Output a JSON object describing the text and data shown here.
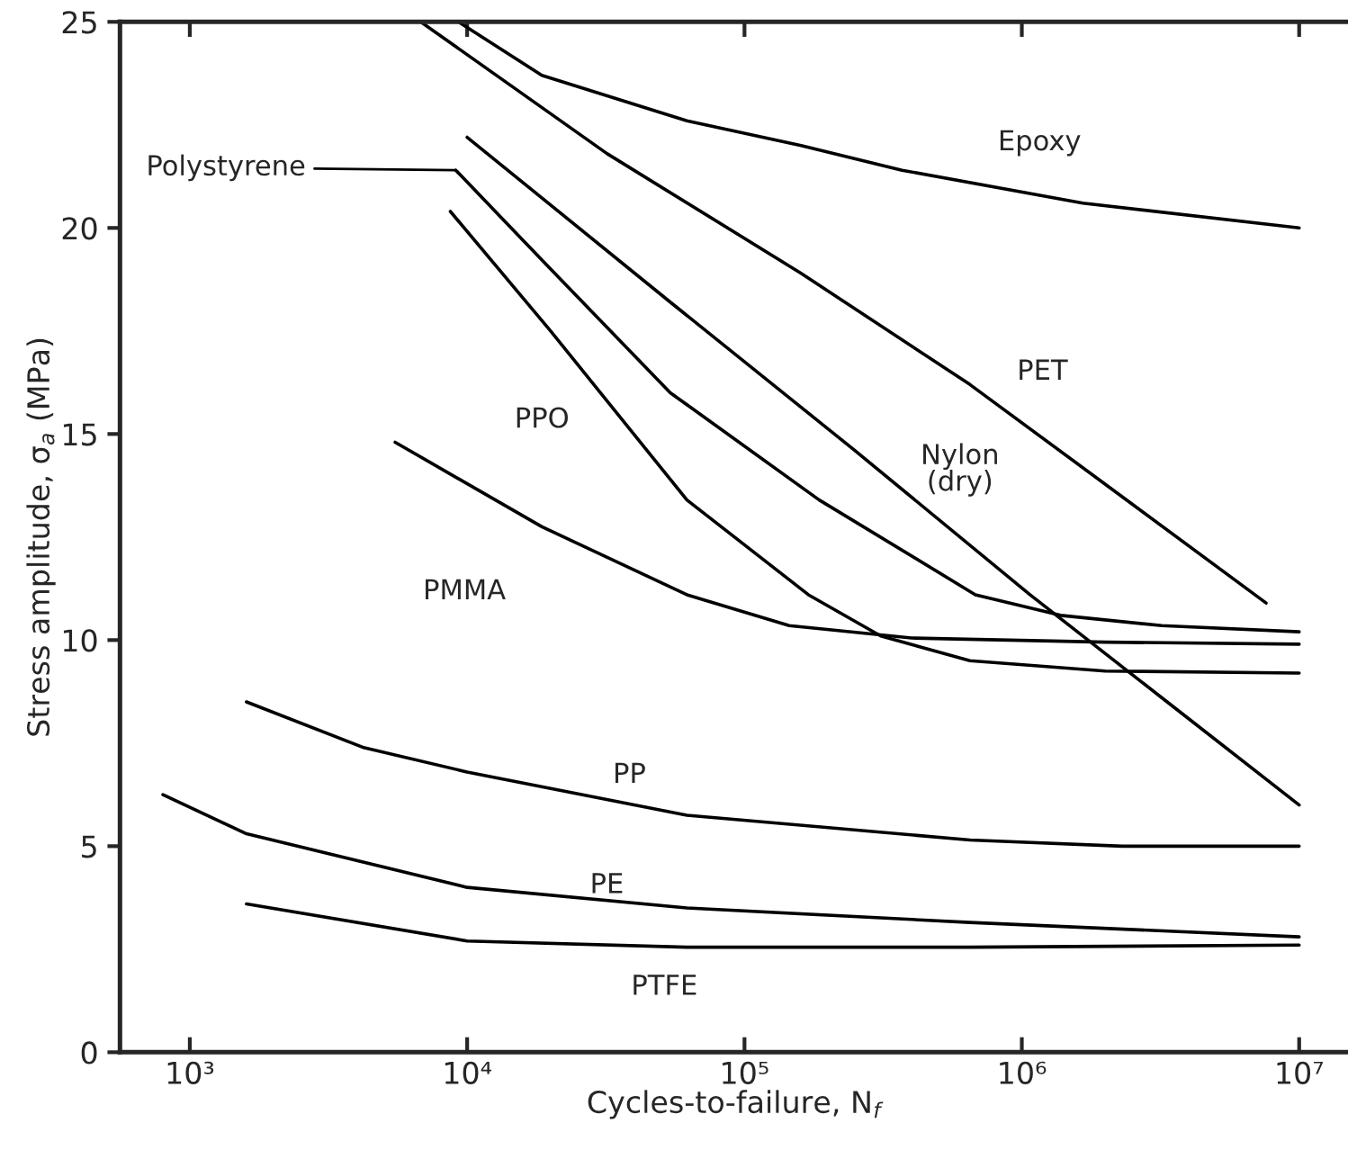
{
  "chart_data": {
    "type": "line",
    "xlabel": "Cycles-to-failure, N$_{f}$",
    "ylabel": "Stress amplitude, σ$_{a}$ (MPa)",
    "log": "x",
    "xlim": [
      560,
      15000000
    ],
    "xticks": [
      {
        "value": 1000,
        "label": "10³"
      },
      {
        "value": 10000,
        "label": "10⁴"
      },
      {
        "value": 100000,
        "label": "10⁵"
      },
      {
        "value": 1000000,
        "label": "10⁶"
      },
      {
        "value": 10000000,
        "label": "10⁷"
      }
    ],
    "ylim": [
      0,
      25
    ],
    "yticks": [
      0,
      5,
      10,
      15,
      20,
      25
    ],
    "grid": false,
    "legend": false,
    "marker": "none",
    "line_style": "solid",
    "series": [
      {
        "name": "Epoxy",
        "color": "#000000",
        "x": [
          9300,
          18600,
          62000,
          160000,
          370000,
          1660000,
          10000000
        ],
        "values": [
          25,
          23.7,
          22.6,
          22.0,
          21.4,
          20.6,
          20.0
        ]
      },
      {
        "name": "PET",
        "color": "#000000",
        "x": [
          6800,
          32000,
          160000,
          650000,
          2500000,
          7600000
        ],
        "values": [
          25,
          21.8,
          18.9,
          16.2,
          13.3,
          10.9
        ]
      },
      {
        "name": "Nylon\n(dry)",
        "color": "#000000",
        "x": [
          10000,
          54000,
          250000,
          1070000,
          3200000,
          10000000
        ],
        "values": [
          22.2,
          18.2,
          14.6,
          11.1,
          8.6,
          6.0
        ]
      },
      {
        "name": "Polystyrene",
        "color": "#000000",
        "x": [
          9100,
          20000,
          54000,
          186000,
          680000,
          1380000,
          3200000,
          10000000
        ],
        "values": [
          21.4,
          19.0,
          16.0,
          13.4,
          11.1,
          10.6,
          10.35,
          10.2
        ]
      },
      {
        "name": "PPO",
        "color": "#000000",
        "x": [
          8700,
          20000,
          62000,
          170000,
          310000,
          650000,
          2000000,
          10000000
        ],
        "values": [
          20.4,
          17.5,
          13.4,
          11.1,
          10.1,
          9.5,
          9.25,
          9.2
        ]
      },
      {
        "name": "PMMA",
        "color": "#000000",
        "x": [
          5500,
          18600,
          62000,
          145000,
          400000,
          2000000,
          10000000
        ],
        "values": [
          14.8,
          12.75,
          11.1,
          10.35,
          10.05,
          9.95,
          9.9
        ]
      },
      {
        "name": "PP",
        "color": "#000000",
        "x": [
          1600,
          4200,
          10000,
          62000,
          650000,
          2300000,
          10000000
        ],
        "values": [
          8.5,
          7.4,
          6.8,
          5.75,
          5.15,
          5.0,
          5.0
        ]
      },
      {
        "name": "PE",
        "color": "#000000",
        "x": [
          800,
          1600,
          10000,
          62000,
          650000,
          10000000
        ],
        "values": [
          6.25,
          5.3,
          4.0,
          3.5,
          3.15,
          2.8
        ]
      },
      {
        "name": "PTFE",
        "color": "#000000",
        "x": [
          1600,
          10000,
          62000,
          650000,
          10000000
        ],
        "values": [
          3.6,
          2.7,
          2.55,
          2.55,
          2.6
        ]
      }
    ]
  }
}
